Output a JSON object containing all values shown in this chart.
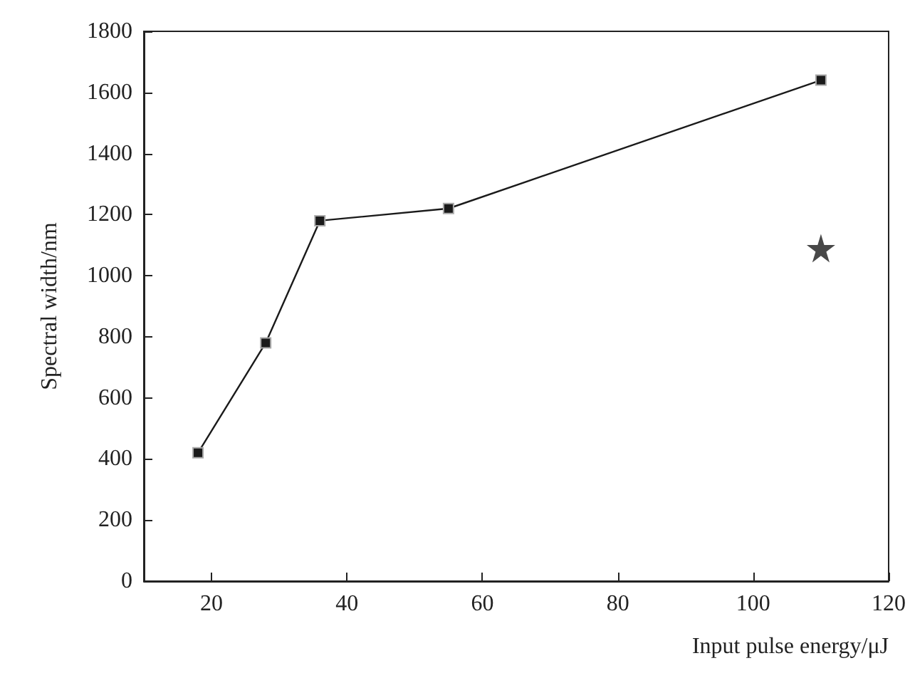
{
  "chart_data": {
    "type": "line",
    "xlabel": "Input pulse energy/μJ",
    "ylabel": "Spectral width/nm",
    "xlim": [
      10,
      120
    ],
    "xticks": [
      20,
      40,
      60,
      80,
      100,
      120
    ],
    "ylim": [
      0,
      1800
    ],
    "yticks": [
      0,
      200,
      400,
      600,
      800,
      1000,
      1200,
      1400,
      1600,
      1800
    ],
    "grid": false,
    "line_style": "solid",
    "series": [
      {
        "type": "line",
        "marker": "square",
        "color": "#1a1a1a",
        "x": [
          18,
          28,
          36,
          55,
          110
        ],
        "values": [
          420,
          780,
          1180,
          1220,
          1640
        ]
      },
      {
        "type": "scatter",
        "marker": "star",
        "color": "#1a1a1a",
        "x": [
          110
        ],
        "values": [
          1090
        ]
      }
    ]
  }
}
